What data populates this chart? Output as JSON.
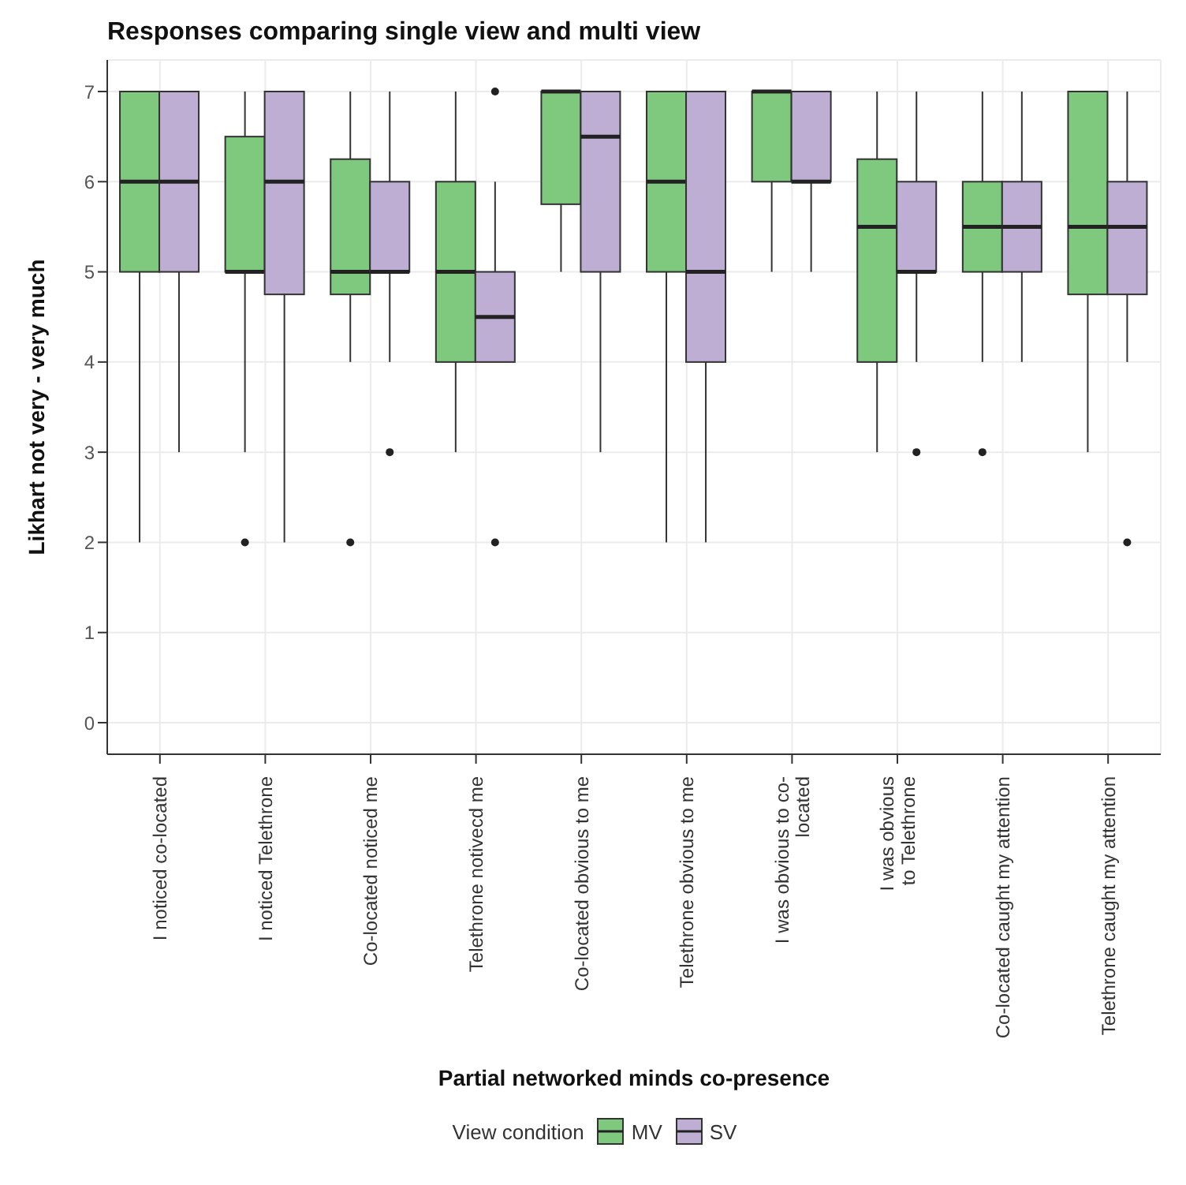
{
  "chart_data": {
    "type": "box",
    "title": "Responses comparing single view and multi view",
    "xlabel": "Partial networked minds co-presence",
    "ylabel": "Likhart not very - very much",
    "legend_title": "View condition",
    "legend": "bottom",
    "grid": true,
    "categories": [
      "I noticed co-located",
      "I noticed Telethrone",
      "Co-located noticed me",
      "Telethrone notivecd me",
      "Co-located obvious to me",
      "Telethrone obvious to me",
      "I was obvious to co-\nlocated",
      "I was obvious\nto Telethrone",
      "Co-located caught my attention",
      "Telethrone caught my attention"
    ],
    "ylim": [
      -0.35,
      7.35
    ],
    "yticks": [
      0,
      1,
      2,
      3,
      4,
      5,
      6,
      7
    ],
    "series": [
      {
        "name": "MV",
        "color": "#7fc97f",
        "boxes": [
          {
            "low": 2,
            "q1": 5,
            "median": 6,
            "q3": 7,
            "high": 7
          },
          {
            "low": 3,
            "q1": 5,
            "median": 5,
            "q3": 6.5,
            "high": 7,
            "outliers": [
              2
            ]
          },
          {
            "low": 4,
            "q1": 4.75,
            "median": 5,
            "q3": 6.25,
            "high": 7,
            "outliers": [
              2
            ]
          },
          {
            "low": 3,
            "q1": 4,
            "median": 5,
            "q3": 6,
            "high": 7
          },
          {
            "low": 5,
            "q1": 5.75,
            "median": 7,
            "q3": 7,
            "high": 7
          },
          {
            "low": 2,
            "q1": 5,
            "median": 6,
            "q3": 7,
            "high": 7
          },
          {
            "low": 5,
            "q1": 6,
            "median": 7,
            "q3": 7,
            "high": 7
          },
          {
            "low": 3,
            "q1": 4,
            "median": 5.5,
            "q3": 6.25,
            "high": 7
          },
          {
            "low": 4,
            "q1": 5,
            "median": 5.5,
            "q3": 6,
            "high": 7,
            "outliers": [
              3
            ]
          },
          {
            "low": 3,
            "q1": 4.75,
            "median": 5.5,
            "q3": 7,
            "high": 7
          }
        ]
      },
      {
        "name": "SV",
        "color": "#beaed4",
        "boxes": [
          {
            "low": 3,
            "q1": 5,
            "median": 6,
            "q3": 7,
            "high": 7
          },
          {
            "low": 2,
            "q1": 4.75,
            "median": 6,
            "q3": 7,
            "high": 7
          },
          {
            "low": 4,
            "q1": 5,
            "median": 5,
            "q3": 6,
            "high": 7,
            "outliers": [
              3
            ]
          },
          {
            "low": 4,
            "q1": 4,
            "median": 4.5,
            "q3": 5,
            "high": 6,
            "outliers": [
              7,
              2
            ]
          },
          {
            "low": 3,
            "q1": 5,
            "median": 6.5,
            "q3": 7,
            "high": 7
          },
          {
            "low": 2,
            "q1": 4,
            "median": 5,
            "q3": 7,
            "high": 7
          },
          {
            "low": 5,
            "q1": 6,
            "median": 6,
            "q3": 7,
            "high": 7
          },
          {
            "low": 4,
            "q1": 5,
            "median": 5,
            "q3": 6,
            "high": 7,
            "outliers": [
              3
            ]
          },
          {
            "low": 4,
            "q1": 5,
            "median": 5.5,
            "q3": 6,
            "high": 7
          },
          {
            "low": 4,
            "q1": 4.75,
            "median": 5.5,
            "q3": 6,
            "high": 7,
            "outliers": [
              2
            ]
          }
        ]
      }
    ]
  }
}
